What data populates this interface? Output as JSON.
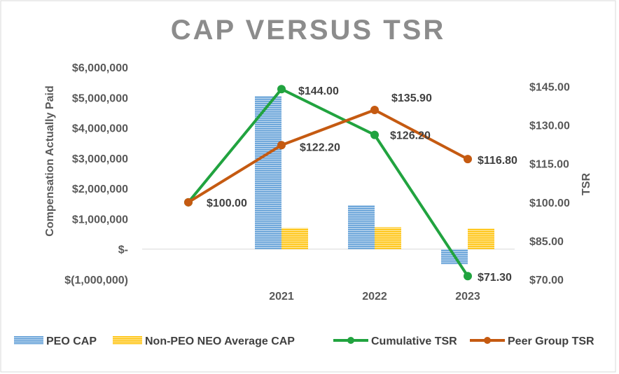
{
  "chart_data": {
    "type": "bar",
    "title": "CAP VERSUS TSR",
    "categories": [
      "",
      "2021",
      "2022",
      "2023"
    ],
    "ylabel": "Compensation Actually Paid",
    "y2label": "TSR",
    "ylim": [
      -1000000,
      6000000
    ],
    "y2lim": [
      70,
      152.5
    ],
    "y_ticks": [
      6000000,
      5000000,
      4000000,
      3000000,
      2000000,
      1000000,
      0,
      -1000000
    ],
    "y_tick_labels": [
      "$6,000,000",
      "$5,000,000",
      "$4,000,000",
      "$3,000,000",
      "$2,000,000",
      "$1,000,000",
      "$-",
      "$(1,000,000)"
    ],
    "y2_ticks": [
      145,
      130,
      115,
      100,
      85,
      70
    ],
    "y2_tick_labels": [
      "$145.00",
      "$130.00",
      "$115.00",
      "$100.00",
      "$85.00",
      "$70.00"
    ],
    "bar_series": [
      {
        "name": "PEO CAP",
        "color": "#5b9bd5",
        "axis": "left",
        "values": [
          null,
          5050000,
          1450000,
          -500000
        ]
      },
      {
        "name": "Non-PEO NEO Average CAP",
        "color": "#ffc000",
        "axis": "left",
        "values": [
          null,
          700000,
          720000,
          680000
        ]
      }
    ],
    "line_series": [
      {
        "name": "Cumulative TSR",
        "color": "#21a33f",
        "axis": "right",
        "values": [
          100,
          144,
          126.2,
          71.3
        ],
        "labels": [
          "",
          "$144.00",
          "$126.20",
          "$71.30"
        ]
      },
      {
        "name": "Peer Group TSR",
        "color": "#c55a11",
        "axis": "right",
        "values": [
          100,
          122.2,
          135.9,
          116.8
        ],
        "labels": [
          "$100.00",
          "$122.20",
          "$135.90",
          "$116.80"
        ]
      }
    ],
    "legend_position": "bottom"
  }
}
